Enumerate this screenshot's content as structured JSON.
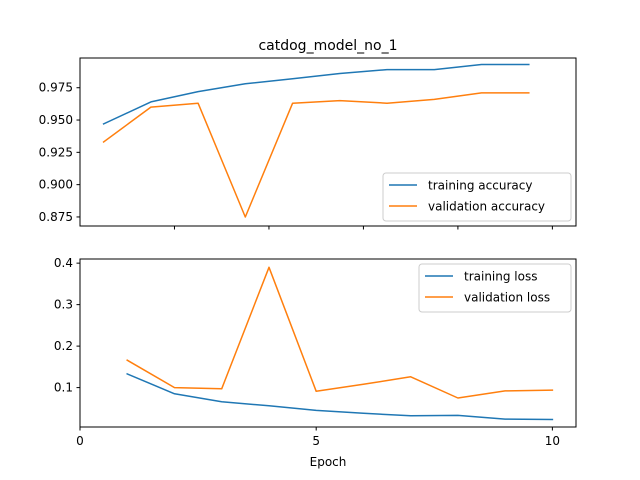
{
  "chart_data": [
    {
      "type": "line",
      "title": "catdog_model_no_1",
      "xlabel": "",
      "ylabel": "",
      "xlim": [
        0,
        10.5
      ],
      "ylim": [
        0.868,
        0.998
      ],
      "yticks": [
        0.875,
        0.9,
        0.925,
        0.95,
        0.975
      ],
      "yticklabels": [
        "0.875",
        "0.900",
        "0.925",
        "0.950",
        "0.975"
      ],
      "xticks": [
        2,
        4,
        6,
        8,
        10
      ],
      "xticklabels_visible": false,
      "x": [
        0.5,
        1.5,
        2.5,
        3.5,
        4.5,
        5.5,
        6.5,
        7.5,
        8.5,
        9.5
      ],
      "series": [
        {
          "name": "training accuracy",
          "color": "#1f77b4",
          "values": [
            0.947,
            0.964,
            0.972,
            0.978,
            0.982,
            0.986,
            0.989,
            0.989,
            0.993,
            0.993
          ]
        },
        {
          "name": "validation accuracy",
          "color": "#ff7f0e",
          "values": [
            0.933,
            0.96,
            0.963,
            0.875,
            0.963,
            0.965,
            0.963,
            0.966,
            0.971,
            0.971
          ]
        }
      ],
      "legend": "lower right",
      "grid": false
    },
    {
      "type": "line",
      "title": "",
      "xlabel": "Epoch",
      "ylabel": "",
      "xlim": [
        0,
        10.5
      ],
      "ylim": [
        0.005,
        0.41
      ],
      "yticks": [
        0.1,
        0.2,
        0.3,
        0.4
      ],
      "yticklabels": [
        "0.1",
        "0.2",
        "0.3",
        "0.4"
      ],
      "xticks": [
        0,
        5,
        10
      ],
      "xticklabels": [
        "0",
        "5",
        "10"
      ],
      "x": [
        1,
        2,
        3,
        4,
        5,
        6,
        7,
        8,
        9,
        10
      ],
      "series": [
        {
          "name": "training loss",
          "color": "#1f77b4",
          "values": [
            0.133,
            0.085,
            0.066,
            0.056,
            0.045,
            0.038,
            0.032,
            0.033,
            0.024,
            0.023
          ]
        },
        {
          "name": "validation loss",
          "color": "#ff7f0e",
          "values": [
            0.166,
            0.1,
            0.097,
            0.39,
            0.091,
            0.108,
            0.126,
            0.075,
            0.092,
            0.094
          ]
        }
      ],
      "legend": "upper right",
      "grid": false
    }
  ]
}
